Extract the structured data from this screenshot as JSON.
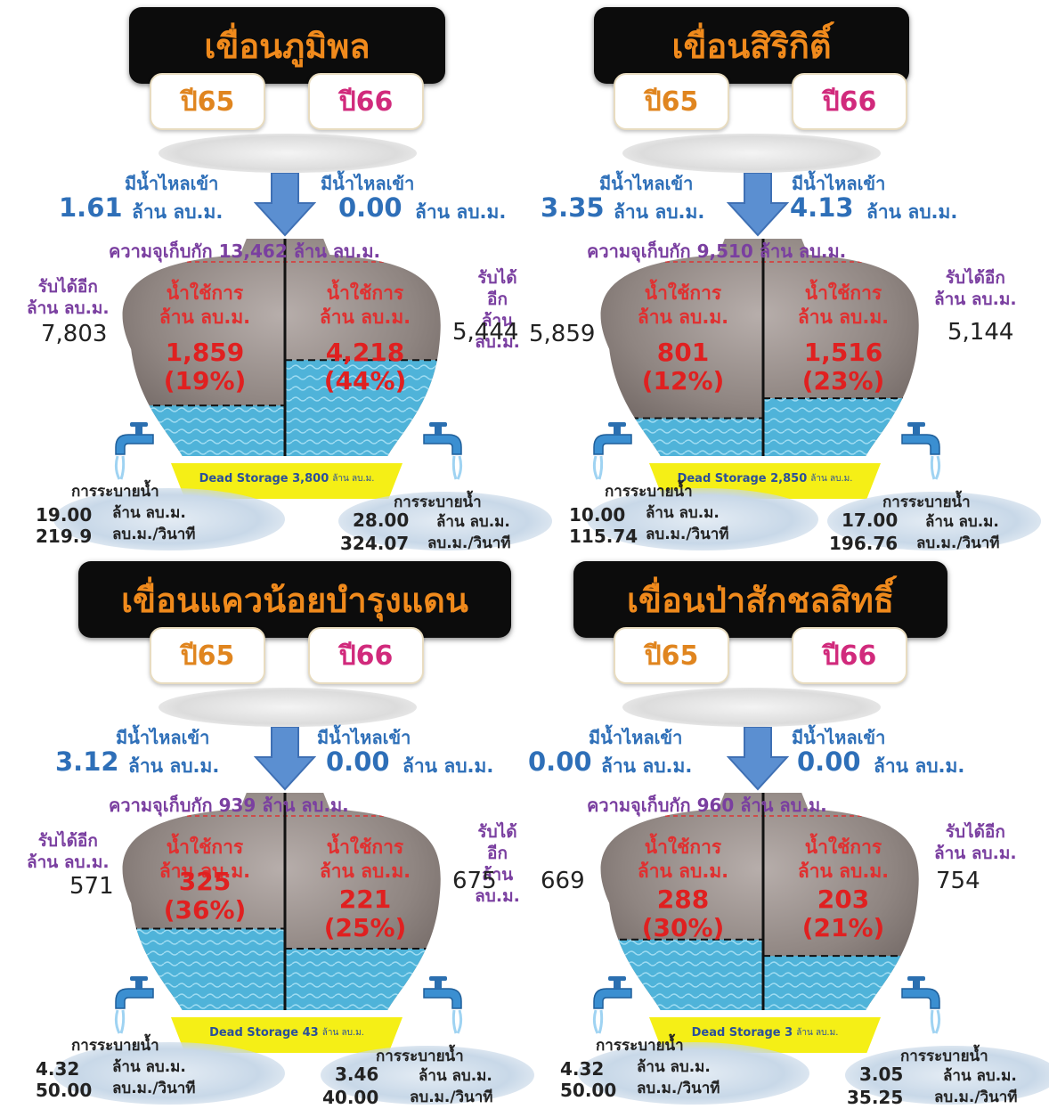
{
  "dams": [
    {
      "name": "เขื่อนภูมิพล",
      "year_prev": "ปี65",
      "year_curr": "ปี66",
      "inflow_label": "มีน้ำไหลเข้า",
      "inflow_prev": "1.61",
      "inflow_curr": "0.00",
      "inflow_unit": "ล้าน ลบ.ม.",
      "capacity_text": "ความจุเก็บกัก 13,462 ล้าน ลบ.ม.",
      "receive_label": "รับได้อีก",
      "receive_unit": "ล้าน ลบ.ม.",
      "receive_prev": "7,803",
      "receive_curr": "5,444",
      "usable_label": "น้ำใช้การ",
      "usable_unit": "ล้าน ลบ.ม.",
      "usable_prev": "1,859",
      "usable_prev_pct": "(19%)",
      "usable_curr": "4,218",
      "usable_curr_pct": "(44%)",
      "dead_storage": "Dead Storage 3,800",
      "dead_unit": "ล้าน ลบ.ม.",
      "release_label": "การระบายน้ำ",
      "release_prev_m3": "19.00",
      "release_prev_rate": "219.9",
      "release_curr_m3": "28.00",
      "release_curr_rate": "324.07",
      "release_unit": "ล้าน ลบ.ม.",
      "rate_unit": "ลบ.ม./วินาที",
      "fill_prev": 0.19,
      "fill_curr": 0.44
    },
    {
      "name": "เขื่อนสิริกิติ์",
      "year_prev": "ปี65",
      "year_curr": "ปี66",
      "inflow_label": "มีน้ำไหลเข้า",
      "inflow_prev": "3.35",
      "inflow_curr": "4.13",
      "inflow_unit": "ล้าน ลบ.ม.",
      "capacity_text": "ความจุเก็บกัก 9,510 ล้าน ลบ.ม.",
      "receive_label": "รับได้อีก",
      "receive_unit": "ล้าน ลบ.ม.",
      "receive_prev": "5,859",
      "receive_curr": "5,144",
      "usable_label": "น้ำใช้การ",
      "usable_unit": "ล้าน ลบ.ม.",
      "usable_prev": "801",
      "usable_prev_pct": "(12%)",
      "usable_curr": "1,516",
      "usable_curr_pct": "(23%)",
      "dead_storage": "Dead Storage 2,850",
      "dead_unit": "ล้าน ลบ.ม.",
      "release_label": "การระบายน้ำ",
      "release_prev_m3": "10.00",
      "release_prev_rate": "115.74",
      "release_curr_m3": "17.00",
      "release_curr_rate": "196.76",
      "release_unit": "ล้าน ลบ.ม.",
      "rate_unit": "ลบ.ม./วินาที",
      "fill_prev": 0.12,
      "fill_curr": 0.23
    },
    {
      "name": "เขื่อนแควน้อยบำรุงแดน",
      "year_prev": "ปี65",
      "year_curr": "ปี66",
      "inflow_label": "มีน้ำไหลเข้า",
      "inflow_prev": "3.12",
      "inflow_curr": "0.00",
      "inflow_unit": "ล้าน ลบ.ม.",
      "capacity_text": "ความจุเก็บกัก 939 ล้าน ลบ.ม.",
      "receive_label": "รับได้อีก",
      "receive_unit": "ล้าน ลบ.ม.",
      "receive_prev": "571",
      "receive_curr": "675",
      "usable_label": "น้ำใช้การ",
      "usable_unit": "ล้าน ลบ.ม.",
      "usable_prev": "325",
      "usable_prev_pct": "(36%)",
      "usable_curr": "221",
      "usable_curr_pct": "(25%)",
      "dead_storage": "Dead Storage 43",
      "dead_unit": "ล้าน ลบ.ม.",
      "release_label": "การระบายน้ำ",
      "release_prev_m3": "4.32",
      "release_prev_rate": "50.00",
      "release_curr_m3": "3.46",
      "release_curr_rate": "40.00",
      "release_unit": "ล้าน ลบ.ม.",
      "rate_unit": "ลบ.ม./วินาที",
      "fill_prev": 0.36,
      "fill_curr": 0.25
    },
    {
      "name": "เขื่อนป่าสักชลสิทธิ์",
      "year_prev": "ปี65",
      "year_curr": "ปี66",
      "inflow_label": "มีน้ำไหลเข้า",
      "inflow_prev": "0.00",
      "inflow_curr": "0.00",
      "inflow_unit": "ล้าน ลบ.ม.",
      "capacity_text": "ความจุเก็บกัก 960 ล้าน ลบ.ม.",
      "receive_label": "รับได้อีก",
      "receive_unit": "ล้าน ลบ.ม.",
      "receive_prev": "669",
      "receive_curr": "754",
      "usable_label": "น้ำใช้การ",
      "usable_unit": "ล้าน ลบ.ม.",
      "usable_prev": "288",
      "usable_prev_pct": "(30%)",
      "usable_curr": "203",
      "usable_curr_pct": "(21%)",
      "dead_storage": "Dead Storage 3",
      "dead_unit": "ล้าน ลบ.ม.",
      "release_label": "การระบายน้ำ",
      "release_prev_m3": "4.32",
      "release_prev_rate": "50.00",
      "release_curr_m3": "3.05",
      "release_curr_rate": "35.25",
      "release_unit": "ล้าน ลบ.ม.",
      "rate_unit": "ลบ.ม./วินาที",
      "fill_prev": 0.3,
      "fill_curr": 0.21
    }
  ],
  "colors": {
    "title_bg": "#0c0c0c",
    "title_text": "#f08a1c",
    "year_prev": "#e0851f",
    "year_curr": "#d12a7c",
    "inflow": "#2e6fb8",
    "capacity": "#7a3fa0",
    "usable": "#e02020",
    "water": "#4fb3d9",
    "dead_storage": "#f5ef16"
  },
  "icons": [
    "down-arrow-icon",
    "faucet-icon",
    "water-jar-icon"
  ]
}
